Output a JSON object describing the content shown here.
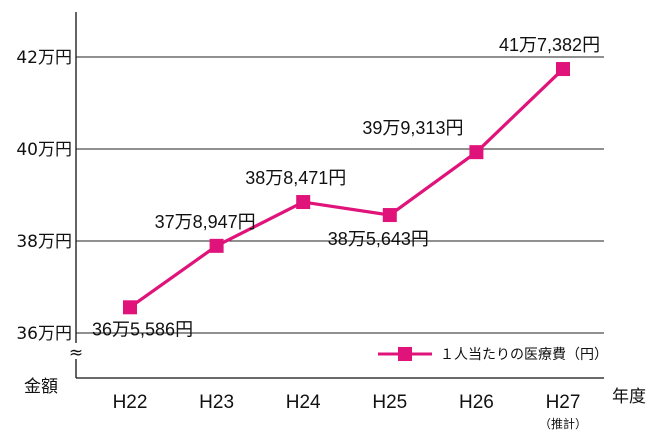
{
  "chart_data": {
    "type": "line",
    "categories": [
      "H22",
      "H23",
      "H24",
      "H25",
      "H26",
      "H27"
    ],
    "category_notes": [
      "",
      "",
      "",
      "",
      "",
      "（推計）"
    ],
    "series": [
      {
        "name": "１人当たりの医療費（円）",
        "values": [
          365586,
          378947,
          388471,
          385643,
          399313,
          417382
        ],
        "labels": [
          "36万5,586円",
          "37万8,947円",
          "38万8,471円",
          "38万5,643円",
          "39万9,313円",
          "41万7,382円"
        ],
        "color": "#e0137a"
      }
    ],
    "y_ticks": [
      {
        "value": 360000,
        "label": "36万円"
      },
      {
        "value": 380000,
        "label": "38万円"
      },
      {
        "value": 400000,
        "label": "40万円"
      },
      {
        "value": 420000,
        "label": "42万円"
      }
    ],
    "ylim": [
      360000,
      430000
    ],
    "ylabel": "金額",
    "xlabel": "年度",
    "axis_break_symbol": "≈",
    "grid": true,
    "legend_position": "bottom-right"
  }
}
